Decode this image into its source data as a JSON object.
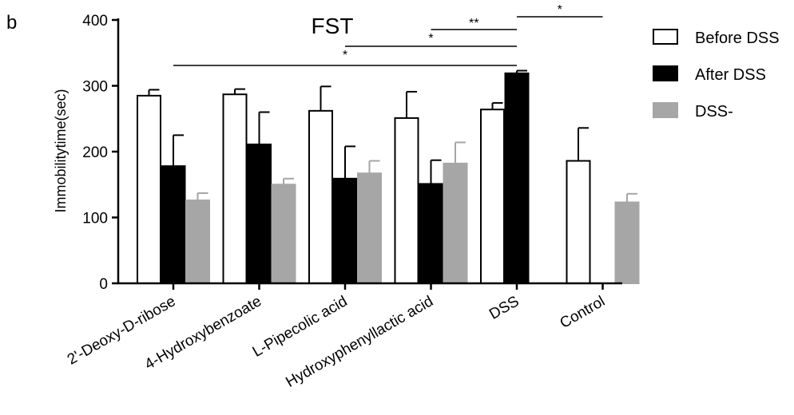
{
  "panel_label": "b",
  "chart_data": {
    "type": "bar",
    "title": "FST",
    "xlabel": "",
    "ylabel": "Immobilitytime(sec)",
    "ylim": [
      0,
      400
    ],
    "yticks": [
      0,
      100,
      200,
      300,
      400
    ],
    "grid": false,
    "legend_position": "top-right",
    "categories": [
      "2'-Deoxy-D-ribose",
      "4-Hydroxybenzoate",
      "L-Pipecolic acid",
      "Hydroxyphenyllactic acid",
      "DSS",
      "Control"
    ],
    "series": [
      {
        "name": "Before DSS",
        "color": "#ffffff",
        "values": [
          285,
          287,
          262,
          251,
          264,
          186
        ],
        "errors": [
          9,
          8,
          37,
          40,
          10,
          50
        ]
      },
      {
        "name": "After DSS",
        "color": "#000000",
        "values": [
          178,
          211,
          159,
          151,
          319,
          null
        ],
        "errors": [
          47,
          49,
          49,
          36,
          4,
          null
        ]
      },
      {
        "name": "DSS-",
        "color": "#a6a6a6",
        "values": [
          126,
          150,
          167,
          182,
          null,
          123
        ],
        "errors": [
          11,
          9,
          19,
          32,
          null,
          13
        ]
      }
    ],
    "annotations": [
      {
        "text": "*",
        "from": {
          "category": "2'-Deoxy-D-ribose",
          "series": "After DSS"
        },
        "to": {
          "category": "DSS",
          "series": "After DSS"
        }
      },
      {
        "text": "*",
        "from": {
          "category": "L-Pipecolic acid",
          "series": "After DSS"
        },
        "to": {
          "category": "DSS",
          "series": "After DSS"
        }
      },
      {
        "text": "**",
        "from": {
          "category": "Hydroxyphenyllactic acid",
          "series": "After DSS"
        },
        "to": {
          "category": "DSS",
          "series": "After DSS"
        }
      },
      {
        "text": "*",
        "from": {
          "category": "DSS",
          "series": "After DSS"
        },
        "to": {
          "category": "Control",
          "series": "After DSS"
        }
      }
    ]
  }
}
